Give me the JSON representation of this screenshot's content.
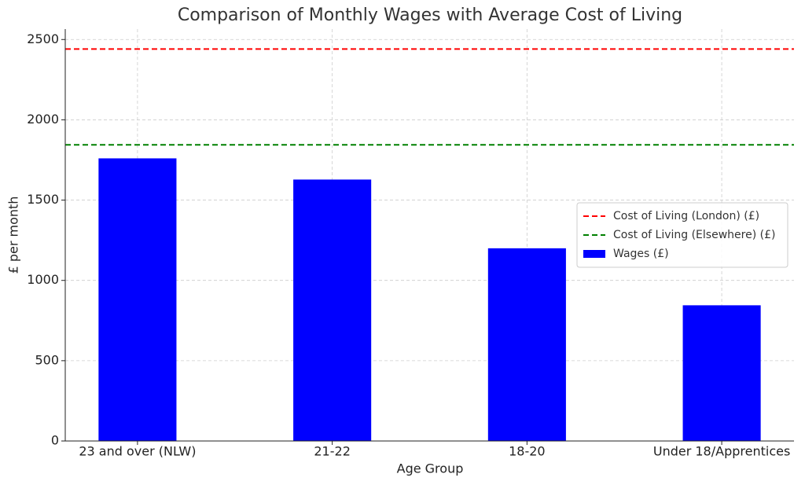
{
  "chart_data": {
    "type": "bar",
    "title": "Comparison of Monthly Wages with Average Cost of Living",
    "xlabel": "Age Group",
    "ylabel": "£ per month",
    "categories": [
      "23 and over (NLW)",
      "21-22",
      "18-20",
      "Under 18/Apprentices"
    ],
    "series": [
      {
        "name": "Wages (£)",
        "color": "#0000ff",
        "values": [
          1760,
          1628,
          1200,
          845
        ]
      }
    ],
    "reference_lines": [
      {
        "name": "Cost of Living (London) (£)",
        "color": "#ff0000",
        "value": 2441,
        "style": "dashed"
      },
      {
        "name": "Cost of Living (Elsewhere) (£)",
        "color": "#008000",
        "value": 1844,
        "style": "dashed"
      }
    ],
    "ylim": [
      0,
      2565
    ],
    "yticks": [
      0,
      500,
      1000,
      1500,
      2000,
      2500
    ],
    "grid": true,
    "legend": "center right"
  }
}
